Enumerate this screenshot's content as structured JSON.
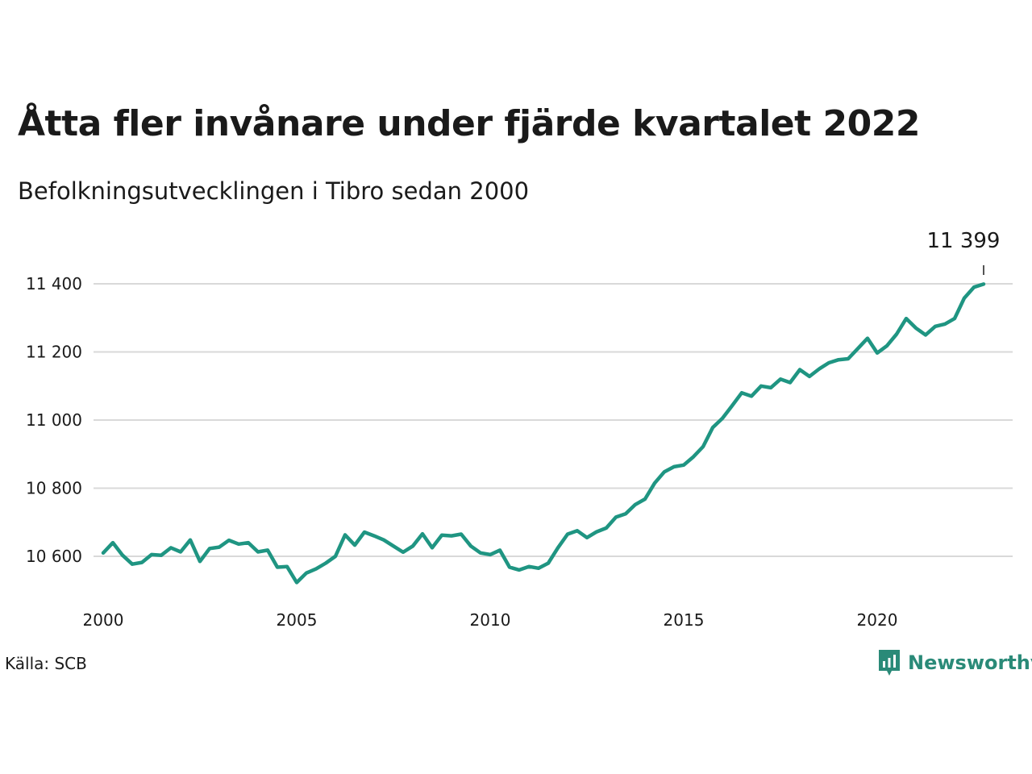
{
  "header": {
    "title": "Åtta fler invånare under fjärde kvartalet 2022",
    "subtitle": "Befolkningsutvecklingen i Tibro sedan 2000"
  },
  "footer": {
    "source": "Källa: SCB",
    "brand": "Newsworthy"
  },
  "colors": {
    "line": "#1f9582",
    "grid": "#d9d9d9",
    "brand": "#2a8a78"
  },
  "chart_data": {
    "type": "line",
    "title": "Åtta fler invånare under fjärde kvartalet 2022",
    "subtitle": "Befolkningsutvecklingen i Tibro sedan 2000",
    "xlabel": "",
    "ylabel": "",
    "xlim": [
      2000,
      2023.75
    ],
    "ylim": [
      10500,
      11420
    ],
    "x_ticks": [
      2000,
      2005,
      2010,
      2015,
      2020
    ],
    "x_tick_labels": [
      "2000",
      "2005",
      "2010",
      "2015",
      "2020"
    ],
    "y_ticks": [
      10600,
      10800,
      11000,
      11200,
      11400
    ],
    "y_tick_labels": [
      "10 600",
      "10 800",
      "11 000",
      "11 200",
      "11 400"
    ],
    "grid": true,
    "legend": "none",
    "annotation": {
      "x": 2022.75,
      "y": 11399,
      "label": "11 399"
    },
    "series": [
      {
        "x": [
          2000,
          2000.25,
          2000.5,
          2000.75,
          2001,
          2001.25,
          2001.5,
          2001.75,
          2002,
          2002.25,
          2002.5,
          2002.75,
          2003,
          2003.25,
          2003.5,
          2003.75,
          2004,
          2004.25,
          2004.5,
          2004.75,
          2005,
          2005.25,
          2005.5,
          2005.75,
          2006,
          2006.25,
          2006.5,
          2006.75,
          2007,
          2007.25,
          2007.5,
          2007.75,
          2008,
          2008.25,
          2008.5,
          2008.75,
          2009,
          2009.25,
          2009.5,
          2009.75,
          2010,
          2010.25,
          2010.5,
          2010.75,
          2011,
          2011.25,
          2011.5,
          2011.75,
          2012,
          2012.25,
          2012.5,
          2012.75,
          2013,
          2013.25,
          2013.5,
          2013.75,
          2014,
          2014.25,
          2014.5,
          2014.75,
          2015,
          2015.25,
          2015.5,
          2015.75,
          2016,
          2016.25,
          2016.5,
          2016.75,
          2017,
          2017.25,
          2017.5,
          2017.75,
          2018,
          2018.25,
          2018.5,
          2018.75,
          2019,
          2019.25,
          2019.5,
          2019.75,
          2020,
          2020.25,
          2020.5,
          2020.75,
          2021,
          2021.25,
          2021.5,
          2021.75,
          2022,
          2022.25,
          2022.5,
          2022.75
        ],
        "values": [
          10610,
          10640,
          10603,
          10577,
          10582,
          10605,
          10603,
          10625,
          10613,
          10648,
          10585,
          10623,
          10627,
          10647,
          10636,
          10640,
          10613,
          10618,
          10568,
          10570,
          10523,
          10551,
          10563,
          10580,
          10600,
          10663,
          10633,
          10671,
          10660,
          10648,
          10630,
          10612,
          10630,
          10666,
          10625,
          10662,
          10660,
          10665,
          10630,
          10610,
          10605,
          10618,
          10568,
          10560,
          10570,
          10565,
          10580,
          10625,
          10665,
          10675,
          10655,
          10672,
          10683,
          10715,
          10725,
          10752,
          10768,
          10815,
          10848,
          10863,
          10868,
          10892,
          10922,
          10978,
          11005,
          11042,
          11080,
          11070,
          11100,
          11095,
          11120,
          11110,
          11148,
          11128,
          11150,
          11168,
          11177,
          11180,
          11210,
          11240,
          11197,
          11218,
          11252,
          11298,
          11270,
          11250,
          11275,
          11282,
          11298,
          11358,
          11390,
          11399
        ]
      }
    ]
  }
}
